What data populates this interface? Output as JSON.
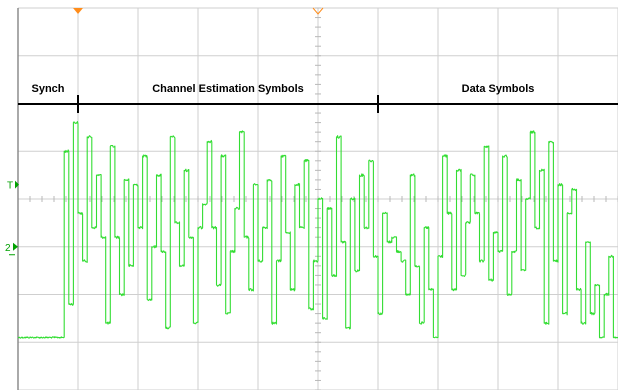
{
  "chart_data": {
    "type": "line",
    "title": "",
    "xlabel": "",
    "ylabel": "",
    "grid": true,
    "colors": {
      "trace": "#33dd33",
      "grid": "#cfcfcf",
      "annotation": "#000000",
      "trigger_marker": "#ff8c1a",
      "channel_marker": "#00a000"
    },
    "xlim": [
      0,
      10
    ],
    "ylim": [
      -4,
      4
    ],
    "markers": {
      "trigger_level": "T",
      "channel": "2"
    },
    "segments": [
      {
        "label": "Synch",
        "start": 0,
        "end": 1
      },
      {
        "label": "Channel Estimation Symbols",
        "start": 1,
        "end": 6
      },
      {
        "label": "Data Symbols",
        "start": 6,
        "end": 10
      }
    ],
    "series": [
      {
        "levels": [
          -2.9,
          -2.9,
          -2.9,
          -2.9,
          -2.9,
          -2.9,
          -2.9,
          -2.9,
          -2.9,
          -2.9,
          1.0,
          -2.2,
          1.6,
          -0.3,
          -1.3,
          1.3,
          -0.6,
          0.5,
          -0.8,
          -2.6,
          1.1,
          -0.8,
          -2.0,
          0.4,
          -1.4,
          0.3,
          -0.6,
          0.9,
          -2.1,
          -1.0,
          0.5,
          -1.1,
          -2.7,
          1.3,
          -0.5,
          -1.4,
          0.6,
          -0.8,
          -2.6,
          -0.6,
          -0.1,
          1.2,
          -0.6,
          -1.8,
          0.9,
          -2.4,
          -1.1,
          -0.2,
          1.4,
          -0.8,
          -1.9,
          0.3,
          -1.3,
          -0.6,
          0.4,
          -2.6,
          -1.3,
          0.9,
          -0.7,
          -1.9,
          0.3,
          -0.6,
          0.8,
          -2.3,
          -1.3,
          0.0,
          -2.5,
          -0.2,
          -1.6,
          1.3,
          -0.9,
          -2.7,
          0.0,
          -1.5,
          0.5,
          -0.6,
          0.8,
          -1.2,
          -2.4,
          -0.3,
          -0.9,
          -0.8,
          -1.1,
          -1.3,
          -2.0,
          0.5,
          -1.4,
          -2.6,
          -0.6,
          -1.9,
          -2.9,
          -1.2,
          0.9,
          -0.3,
          -1.9,
          0.6,
          -1.6,
          -0.5,
          0.5,
          -0.3,
          -1.3,
          1.1,
          -1.7,
          -0.7,
          -1.1,
          0.9,
          -2.0,
          -1.1,
          0.4,
          -1.5,
          0.0,
          1.4,
          -0.6,
          0.6,
          -2.6,
          1.2,
          -1.3,
          0.3,
          -2.4,
          -0.3,
          0.2,
          -1.9,
          -2.6,
          -0.9,
          -2.4,
          -1.8,
          -2.9,
          -2.0,
          -1.2,
          -2.9
        ]
      }
    ]
  }
}
